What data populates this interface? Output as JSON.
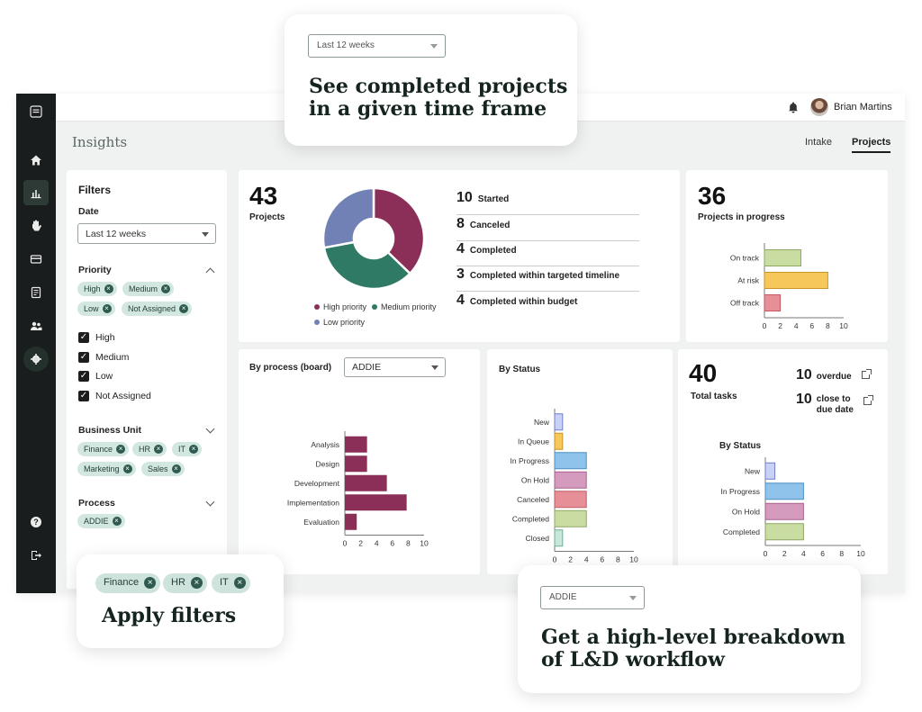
{
  "header": {
    "user_name": "Brian Martins"
  },
  "page": {
    "title": "Insights",
    "tabs": [
      {
        "label": "Intake",
        "active": false
      },
      {
        "label": "Projects",
        "active": true
      }
    ]
  },
  "sidebar": {
    "icons": [
      "menu-icon",
      "home-icon",
      "insights-icon",
      "hand-icon",
      "card-icon",
      "document-icon",
      "people-icon",
      "settings-icon",
      "help-icon",
      "logout-icon"
    ]
  },
  "filters": {
    "title": "Filters",
    "date_label": "Date",
    "date_value": "Last 12 weeks",
    "priority_label": "Priority",
    "priority_chips": [
      "High",
      "Medium",
      "Low",
      "Not Assigned"
    ],
    "priority_options": [
      "High",
      "Medium",
      "Low",
      "Not Assigned"
    ],
    "business_unit_label": "Business Unit",
    "business_unit_chips": [
      "Finance",
      "HR",
      "IT",
      "Marketing",
      "Sales"
    ],
    "process_label": "Process",
    "process_chips": [
      "ADDIE"
    ]
  },
  "projects": {
    "count": "43",
    "label": "Projects",
    "stats": [
      {
        "n": "10",
        "label": "Started"
      },
      {
        "n": "8",
        "label": "Canceled"
      },
      {
        "n": "4",
        "label": "Completed"
      },
      {
        "n": "3",
        "label": "Completed within targeted timeline"
      },
      {
        "n": "4",
        "label": "Completed within budget"
      }
    ],
    "legend": [
      "High priority",
      "Medium priority",
      "Low priority"
    ]
  },
  "in_progress": {
    "count": "36",
    "label": "Projects in progress"
  },
  "by_process": {
    "title": "By process (board)",
    "select_value": "ADDIE"
  },
  "by_status": {
    "title": "By Status"
  },
  "tasks": {
    "count": "40",
    "label": "Total tasks",
    "overdue_n": "10",
    "overdue_label": "overdue",
    "close_n": "10",
    "close_label_1": "close to",
    "close_label_2": "due date",
    "status_title": "By Status"
  },
  "callouts": {
    "timeframe_select": "Last 12 weeks",
    "timeframe_text_1": "See completed projects",
    "timeframe_text_2": "in a given time frame",
    "filter_chips": [
      "Finance",
      "HR",
      "IT"
    ],
    "filter_text": "Apply filters",
    "workflow_select": "ADDIE",
    "workflow_text_1": "Get a high-level breakdown",
    "workflow_text_2": "of L&D workflow"
  },
  "colors": {
    "high": "#8b2f58",
    "medium": "#2f7a64",
    "low": "#7281b5",
    "good": "#c9dca2",
    "warn": "#f6c75a",
    "bad": "#e68f97",
    "blue": "#8fc3ec",
    "lilac": "#c9d2f5",
    "pink": "#d59bbf"
  },
  "chart_data": [
    {
      "type": "pie",
      "categories": [
        "High priority",
        "Medium priority",
        "Low priority"
      ],
      "values": [
        16,
        15,
        12
      ]
    },
    {
      "type": "bar",
      "orientation": "horizontal",
      "categories": [
        "On track",
        "At risk",
        "Off track"
      ],
      "values": [
        4.6,
        8,
        2
      ],
      "xlim": [
        0,
        10
      ],
      "xticks": [
        0,
        2,
        4,
        6,
        8,
        10
      ]
    },
    {
      "type": "bar",
      "orientation": "horizontal",
      "categories": [
        "Analysis",
        "Design",
        "Development",
        "Implementation",
        "Evaluation"
      ],
      "values": [
        2.8,
        2.8,
        5.3,
        7.8,
        1.5
      ],
      "xlim": [
        0,
        10
      ],
      "xticks": [
        0,
        2,
        4,
        6,
        8,
        10
      ]
    },
    {
      "type": "bar",
      "orientation": "horizontal",
      "title": "By Status",
      "categories": [
        "New",
        "In Queue",
        "In Progress",
        "On Hold",
        "Canceled",
        "Completed",
        "Closed"
      ],
      "values": [
        1,
        1,
        4,
        4,
        4,
        4,
        1
      ],
      "xlim": [
        0,
        10
      ],
      "xticks": [
        0,
        2,
        4,
        6,
        8,
        10
      ]
    },
    {
      "type": "bar",
      "orientation": "horizontal",
      "title": "By Status",
      "categories": [
        "New",
        "In Progress",
        "On Hold",
        "Completed"
      ],
      "values": [
        1,
        4,
        4,
        4
      ],
      "xlim": [
        0,
        10
      ],
      "xticks": [
        0,
        2,
        4,
        6,
        8,
        10
      ]
    }
  ]
}
